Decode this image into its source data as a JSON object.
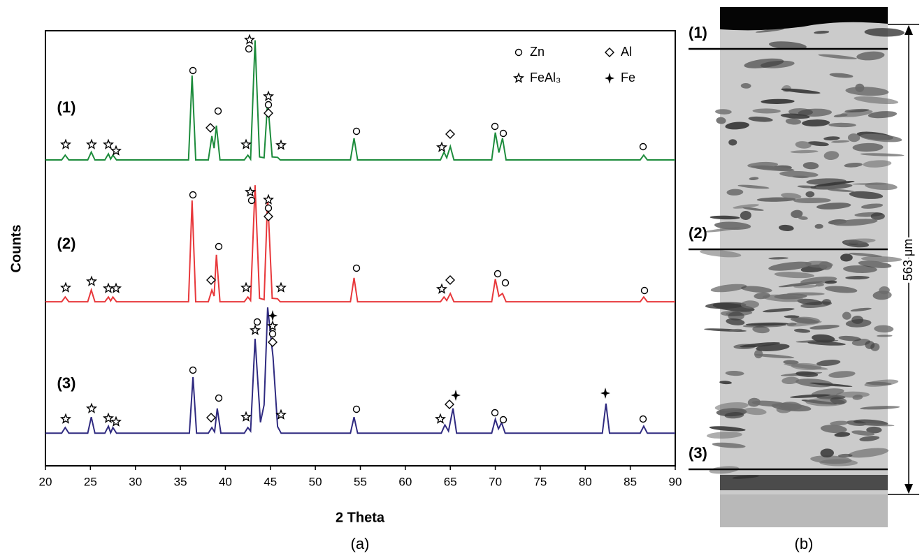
{
  "chart_data": {
    "type": "line",
    "x_label": "2 Theta",
    "y_label": "Counts",
    "caption": "(a)",
    "xlim": [
      20,
      90
    ],
    "ylim": [
      0,
      100
    ],
    "xticks": [
      20,
      25,
      30,
      35,
      40,
      45,
      50,
      55,
      60,
      65,
      70,
      75,
      80,
      85,
      90
    ],
    "legend": [
      "Zn",
      "Al",
      "FeAl₃",
      "Fe"
    ],
    "series": [
      {
        "name": "(1)",
        "color": "#1d8c3c",
        "x": [
          20,
          21.8,
          22.2,
          22.6,
          24.7,
          25.1,
          25.5,
          26.6,
          27.0,
          27.25,
          27.5,
          27.9,
          35.9,
          36.3,
          36.7,
          38.1,
          38.5,
          38.75,
          39.0,
          39.4,
          42.1,
          42.5,
          42.8,
          43.3,
          43.8,
          44.3,
          44.7,
          45.2,
          45.8,
          46.1,
          53.9,
          54.3,
          54.7,
          63.9,
          64.3,
          64.6,
          65.0,
          65.4,
          69.6,
          70.0,
          70.4,
          70.8,
          71.2,
          86.1,
          86.5,
          86.9,
          90
        ],
        "values": [
          70.3,
          70.3,
          71.4,
          70.3,
          70.3,
          72.1,
          70.3,
          70.3,
          71.7,
          70.5,
          71.4,
          70.3,
          70.3,
          89.7,
          70.3,
          70.3,
          75.8,
          73,
          78.2,
          70.3,
          70.3,
          71.4,
          70.5,
          97.8,
          71,
          70.8,
          83.8,
          71,
          70.9,
          70.3,
          70.3,
          75.3,
          70.3,
          70.3,
          72.1,
          70.8,
          73.4,
          70.3,
          70.3,
          76.6,
          72,
          75.3,
          70.3,
          70.3,
          71.4,
          70.3,
          70.3
        ]
      },
      {
        "name": "(2)",
        "color": "#e8383b",
        "x": [
          20,
          21.8,
          22.2,
          22.6,
          24.7,
          25.1,
          25.5,
          26.6,
          27.0,
          27.25,
          27.5,
          27.9,
          35.9,
          36.3,
          36.7,
          38.1,
          38.5,
          38.75,
          39.0,
          39.4,
          42.1,
          42.5,
          42.8,
          43.3,
          43.8,
          44.3,
          44.7,
          45.2,
          45.8,
          46.1,
          53.9,
          54.3,
          54.7,
          63.9,
          64.3,
          64.6,
          65.0,
          65.4,
          69.6,
          70.0,
          70.4,
          70.8,
          71.2,
          86.1,
          86.5,
          86.9,
          90
        ],
        "values": [
          37.7,
          37.7,
          38.8,
          37.7,
          37.7,
          40.4,
          37.7,
          37.7,
          38.8,
          37.9,
          38.8,
          37.7,
          37.7,
          61.0,
          37.7,
          37.7,
          40.4,
          39,
          48.5,
          37.7,
          37.7,
          38.8,
          38,
          64.5,
          38.5,
          38.2,
          61.8,
          38.5,
          38.4,
          37.7,
          37.7,
          43.2,
          37.7,
          37.7,
          38.8,
          38,
          39.6,
          37.7,
          37.7,
          42.9,
          39,
          39.6,
          37.7,
          37.7,
          38.8,
          37.7,
          37.7
        ]
      },
      {
        "name": "(3)",
        "color": "#2f2a80",
        "x": [
          20,
          21.8,
          22.2,
          22.6,
          24.7,
          25.1,
          25.5,
          26.6,
          27.0,
          27.25,
          27.5,
          27.9,
          36.0,
          36.4,
          36.8,
          38.1,
          38.5,
          38.8,
          39.1,
          39.5,
          42.1,
          42.5,
          42.8,
          43.3,
          43.9,
          44.3,
          44.7,
          45.3,
          45.8,
          46.2,
          53.9,
          54.3,
          54.7,
          64.0,
          64.4,
          64.8,
          65.3,
          65.7,
          69.6,
          70.0,
          70.35,
          70.7,
          71.1,
          81.9,
          82.3,
          82.7,
          86.1,
          86.5,
          86.9,
          90
        ],
        "values": [
          7.5,
          7.5,
          8.8,
          7.5,
          7.5,
          11.2,
          7.5,
          7.5,
          9.1,
          7.6,
          8.8,
          7.5,
          7.5,
          20.4,
          7.5,
          7.5,
          8.8,
          7.8,
          13.2,
          7.5,
          7.5,
          8.8,
          8,
          29.2,
          10,
          14,
          36.4,
          25.0,
          9,
          7.5,
          7.5,
          11.2,
          7.5,
          7.5,
          9.4,
          8,
          13.2,
          7.5,
          7.5,
          10.7,
          8.5,
          9.9,
          7.5,
          7.5,
          14.3,
          7.5,
          7.5,
          9.1,
          7.5,
          7.5
        ]
      }
    ]
  },
  "micrograph": {
    "scale_label": "563 μm",
    "caption": "(b)"
  }
}
